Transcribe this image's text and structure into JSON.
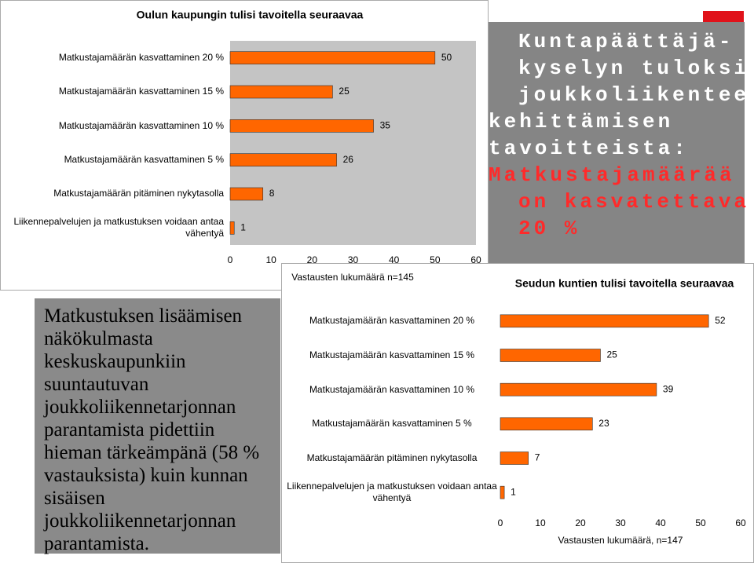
{
  "chart_data": [
    {
      "type": "bar",
      "orientation": "horizontal",
      "title": "Oulun kaupungin tulisi tavoitella seuraavaa",
      "categories": [
        "Matkustajamäärän kasvattaminen 20 %",
        "Matkustajamäärän kasvattaminen 15 %",
        "Matkustajamäärän kasvattaminen 10 %",
        "Matkustajamäärän kasvattaminen 5 %",
        "Matkustajamäärän pitäminen nykytasolla",
        "Liikennepalvelujen ja matkustuksen voidaan antaa vähentyä"
      ],
      "values": [
        50,
        25,
        35,
        26,
        8,
        1
      ],
      "color": "#ff6600",
      "xlabel": "Vastausten lukumäärä n=145",
      "xlim": [
        0,
        60
      ],
      "xticks": [
        0,
        10,
        20,
        30,
        40,
        50,
        60
      ]
    },
    {
      "type": "bar",
      "orientation": "horizontal",
      "title": "Seudun kuntien tulisi tavoitella seuraavaa",
      "categories": [
        "Matkustajamäärän kasvattaminen 20 %",
        "Matkustajamäärän kasvattaminen 15 %",
        "Matkustajamäärän kasvattaminen 10 %",
        "Matkustajamäärän kasvattaminen 5 %",
        "Matkustajamäärän pitäminen nykytasolla",
        "Liikennepalvelujen ja matkustuksen voidaan antaa vähentyä"
      ],
      "values": [
        52,
        25,
        39,
        23,
        7,
        1
      ],
      "color": "#ff6600",
      "xlabel": "Vastausten lukumäärä, n=147",
      "xlim": [
        0,
        60
      ],
      "xticks": [
        0,
        10,
        20,
        30,
        40,
        50,
        60
      ]
    }
  ],
  "slide": {
    "heading_lines": [
      "Kuntapäättäjä-",
      "kyselyn tuloksia",
      "joukkoliikenteen",
      "kehittämisen",
      "tavoitteista:"
    ],
    "highlight_lines": [
      "Matkustajamäärää",
      "on kasvatettava",
      "20 %"
    ],
    "body_text": "Matkustuksen lisäämisen näkökulmasta keskuskaupunkiin suuntautuvan joukkoliikennetarjonnan parantamista pidettiin hieman tärkeämpänä (58 % vastauksista) kuin kunnan sisäisen joukkoliikennetarjonnan parantamista."
  }
}
